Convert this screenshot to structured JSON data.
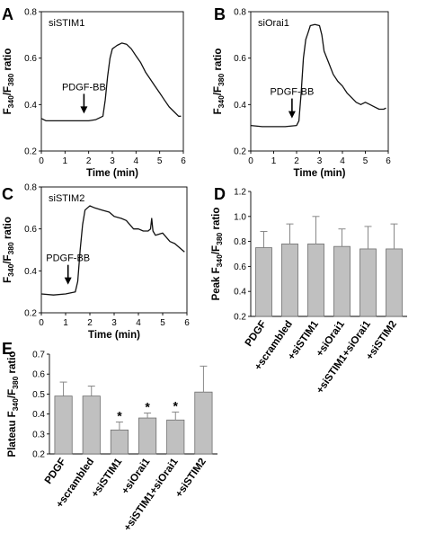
{
  "chart_data": [
    {
      "panel": "A",
      "type": "line",
      "inset_label": "siSTIM1",
      "annotation": "PDGF-BB",
      "annotation_x": 1.8,
      "xlabel": "Time (min)",
      "ylabel": [
        "F",
        "340",
        "/F",
        "380",
        " ratio"
      ],
      "xlim": [
        0,
        6
      ],
      "ylim": [
        0.2,
        0.8
      ],
      "xticks": [
        "0",
        "1",
        "2",
        "3",
        "4",
        "5",
        "6"
      ],
      "yticks": [
        "0.2",
        "0.4",
        "0.6",
        "0.8"
      ],
      "x": [
        0,
        0.2,
        0.5,
        1.0,
        1.5,
        2.0,
        2.3,
        2.6,
        2.7,
        2.8,
        2.9,
        3.0,
        3.2,
        3.4,
        3.6,
        3.8,
        4.0,
        4.2,
        4.4,
        4.6,
        4.8,
        5.0,
        5.2,
        5.4,
        5.6,
        5.8,
        5.9
      ],
      "y": [
        0.34,
        0.33,
        0.33,
        0.33,
        0.33,
        0.33,
        0.335,
        0.35,
        0.42,
        0.52,
        0.6,
        0.64,
        0.655,
        0.665,
        0.66,
        0.64,
        0.61,
        0.58,
        0.54,
        0.51,
        0.48,
        0.45,
        0.42,
        0.39,
        0.37,
        0.35,
        0.35
      ]
    },
    {
      "panel": "B",
      "type": "line",
      "inset_label": "siOrai1",
      "annotation": "PDGF-BB",
      "annotation_x": 1.8,
      "xlabel": "Time (min)",
      "ylabel": [
        "F",
        "340",
        "/F",
        "380",
        " ratio"
      ],
      "xlim": [
        0,
        6
      ],
      "ylim": [
        0.2,
        0.8
      ],
      "xticks": [
        "0",
        "1",
        "2",
        "3",
        "4",
        "5",
        "6"
      ],
      "yticks": [
        "0.2",
        "0.4",
        "0.6",
        "0.8"
      ],
      "x": [
        0,
        0.5,
        1.0,
        1.5,
        2.0,
        2.1,
        2.2,
        2.3,
        2.4,
        2.5,
        2.6,
        2.8,
        3.0,
        3.1,
        3.2,
        3.4,
        3.6,
        3.8,
        4.0,
        4.2,
        4.4,
        4.6,
        4.8,
        5.0,
        5.2,
        5.4,
        5.6,
        5.8,
        5.9
      ],
      "y": [
        0.31,
        0.305,
        0.305,
        0.305,
        0.31,
        0.33,
        0.45,
        0.6,
        0.68,
        0.71,
        0.74,
        0.745,
        0.74,
        0.7,
        0.63,
        0.58,
        0.53,
        0.5,
        0.48,
        0.45,
        0.43,
        0.41,
        0.4,
        0.41,
        0.4,
        0.39,
        0.38,
        0.38,
        0.385
      ]
    },
    {
      "panel": "C",
      "type": "line",
      "inset_label": "siSTIM2",
      "annotation": "PDGF-BB",
      "annotation_x": 1.1,
      "xlabel": "Time (min)",
      "ylabel": [
        "F",
        "340",
        "/F",
        "380",
        " ratio"
      ],
      "xlim": [
        0,
        6
      ],
      "ylim": [
        0.2,
        0.8
      ],
      "xticks": [
        "0",
        "1",
        "2",
        "3",
        "4",
        "5",
        "6"
      ],
      "yticks": [
        "0.2",
        "0.4",
        "0.6",
        "0.8"
      ],
      "x": [
        0,
        0.5,
        1.0,
        1.4,
        1.5,
        1.6,
        1.7,
        1.8,
        1.9,
        2.0,
        2.2,
        2.5,
        2.8,
        3.0,
        3.3,
        3.5,
        3.8,
        4.0,
        4.2,
        4.4,
        4.5,
        4.55,
        4.6,
        4.7,
        5.0,
        5.3,
        5.5,
        5.8,
        5.9
      ],
      "y": [
        0.29,
        0.285,
        0.29,
        0.3,
        0.35,
        0.5,
        0.62,
        0.69,
        0.7,
        0.71,
        0.7,
        0.69,
        0.68,
        0.66,
        0.65,
        0.64,
        0.6,
        0.6,
        0.59,
        0.59,
        0.6,
        0.65,
        0.59,
        0.57,
        0.58,
        0.54,
        0.53,
        0.5,
        0.49
      ]
    },
    {
      "panel": "D",
      "type": "bar",
      "ylabel": [
        "Peak F",
        "340",
        "/F",
        "380",
        " ratio"
      ],
      "ylim": [
        0.2,
        1.2
      ],
      "yticks": [
        "0.2",
        "0.4",
        "0.6",
        "0.8",
        "1.0",
        "1.2"
      ],
      "categories": [
        "PDGF",
        "+scrambled",
        "+siSTIM1",
        "+siOrai1",
        "+siSTIM1+siOrai1",
        "+siSTIM2"
      ],
      "values": [
        0.75,
        0.78,
        0.78,
        0.76,
        0.74,
        0.74
      ],
      "errors": [
        0.13,
        0.16,
        0.22,
        0.14,
        0.18,
        0.2
      ],
      "significance": [
        "",
        "",
        "",
        "",
        "",
        ""
      ],
      "colors": {
        "bar": "#c0c0c0",
        "edge": "#6e6e6e"
      }
    },
    {
      "panel": "E",
      "type": "bar",
      "ylabel": [
        "Plateau F",
        "340",
        "/F",
        "380",
        " ratio"
      ],
      "ylim": [
        0.2,
        0.7
      ],
      "yticks": [
        "0.2",
        "0.3",
        "0.4",
        "0.5",
        "0.6",
        "0.7"
      ],
      "categories": [
        "PDGF",
        "+scrambled",
        "+siSTIM1",
        "+siOrai1",
        "+siSTIM1+siOrai1",
        "+siSTIM2"
      ],
      "values": [
        0.49,
        0.49,
        0.32,
        0.38,
        0.37,
        0.51
      ],
      "errors": [
        0.07,
        0.05,
        0.04,
        0.025,
        0.04,
        0.13
      ],
      "significance": [
        "",
        "",
        "*",
        "*",
        "*",
        ""
      ],
      "colors": {
        "bar": "#c0c0c0",
        "edge": "#6e6e6e"
      }
    }
  ]
}
